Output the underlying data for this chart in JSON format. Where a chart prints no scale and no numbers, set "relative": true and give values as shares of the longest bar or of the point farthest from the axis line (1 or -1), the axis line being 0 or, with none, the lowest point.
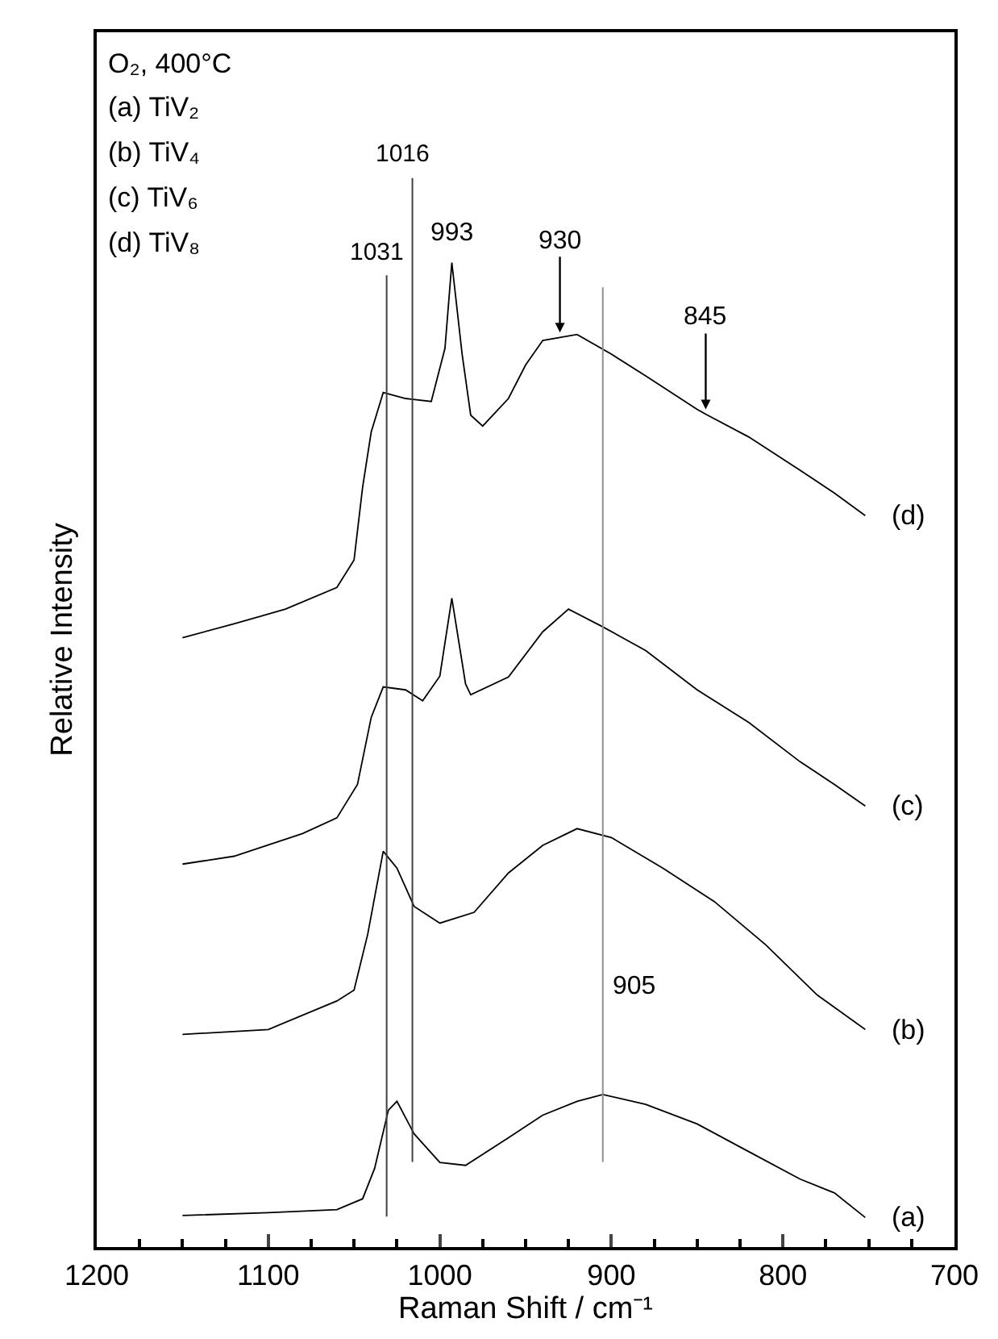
{
  "chart_data": {
    "type": "line",
    "relative": true,
    "xlabel": "Raman Shift / cm⁻¹",
    "ylabel": "Relative Intensity",
    "xlim": [
      1200,
      700
    ],
    "xticks": [
      1200,
      1100,
      1000,
      900,
      800,
      700
    ],
    "legend": false,
    "marker": "none",
    "line_style": "solid",
    "series": [
      {
        "name": "(a)",
        "color": "#000000",
        "x": [
          1150,
          1100,
          1060,
          1045,
          1038,
          1030,
          1025,
          1015,
          1000,
          985,
          960,
          940,
          920,
          905,
          880,
          850,
          820,
          790,
          770,
          752
        ],
        "values": [
          0.032,
          0.035,
          0.038,
          0.049,
          0.08,
          0.139,
          0.148,
          0.115,
          0.086,
          0.083,
          0.111,
          0.134,
          0.148,
          0.155,
          0.145,
          0.125,
          0.097,
          0.069,
          0.055,
          0.03
        ]
      },
      {
        "name": "(b)",
        "color": "#000000",
        "x": [
          1150,
          1100,
          1060,
          1050,
          1042,
          1033,
          1025,
          1015,
          1000,
          980,
          960,
          940,
          920,
          900,
          870,
          840,
          810,
          780,
          752
        ],
        "values": [
          0.216,
          0.221,
          0.25,
          0.261,
          0.318,
          0.402,
          0.385,
          0.346,
          0.329,
          0.34,
          0.38,
          0.408,
          0.425,
          0.416,
          0.385,
          0.351,
          0.307,
          0.256,
          0.221
        ]
      },
      {
        "name": "(c)",
        "color": "#000000",
        "x": [
          1150,
          1120,
          1080,
          1060,
          1048,
          1040,
          1033,
          1020,
          1010,
          1000,
          993,
          985,
          982,
          960,
          940,
          925,
          905,
          880,
          850,
          820,
          790,
          770,
          752
        ],
        "values": [
          0.389,
          0.397,
          0.42,
          0.436,
          0.47,
          0.538,
          0.569,
          0.566,
          0.555,
          0.58,
          0.659,
          0.572,
          0.561,
          0.579,
          0.625,
          0.648,
          0.63,
          0.606,
          0.566,
          0.533,
          0.493,
          0.47,
          0.448
        ]
      },
      {
        "name": "(d)",
        "color": "#000000",
        "x": [
          1150,
          1120,
          1090,
          1060,
          1050,
          1045,
          1040,
          1033,
          1020,
          1005,
          997,
          993,
          987,
          982,
          975,
          960,
          950,
          940,
          930,
          920,
          900,
          880,
          850,
          845,
          820,
          790,
          770,
          752
        ],
        "values": [
          0.619,
          0.633,
          0.648,
          0.67,
          0.698,
          0.772,
          0.828,
          0.868,
          0.862,
          0.859,
          0.913,
          1.0,
          0.907,
          0.845,
          0.834,
          0.862,
          0.896,
          0.921,
          0.924,
          0.927,
          0.907,
          0.885,
          0.851,
          0.846,
          0.823,
          0.789,
          0.766,
          0.743
        ]
      }
    ],
    "ref_lines": [
      {
        "axis": "x",
        "value": 1031,
        "label": "1031",
        "color": "#404040"
      },
      {
        "axis": "x",
        "value": 1016,
        "label": "1016",
        "color": "#404040"
      },
      {
        "axis": "x",
        "value": 905,
        "label": "905",
        "color": "#909090"
      }
    ],
    "annotations": [
      "O₂, 400°C",
      "(a) TiV₂",
      "(b) TiV₄",
      "(c) TiV₆",
      "(d) TiV₈",
      {
        "text": "993",
        "x": 993,
        "y": 1.0
      },
      {
        "text": "930",
        "x": 930,
        "y": 0.924
      },
      {
        "text": "845",
        "x": 845,
        "y": 0.846
      }
    ]
  }
}
